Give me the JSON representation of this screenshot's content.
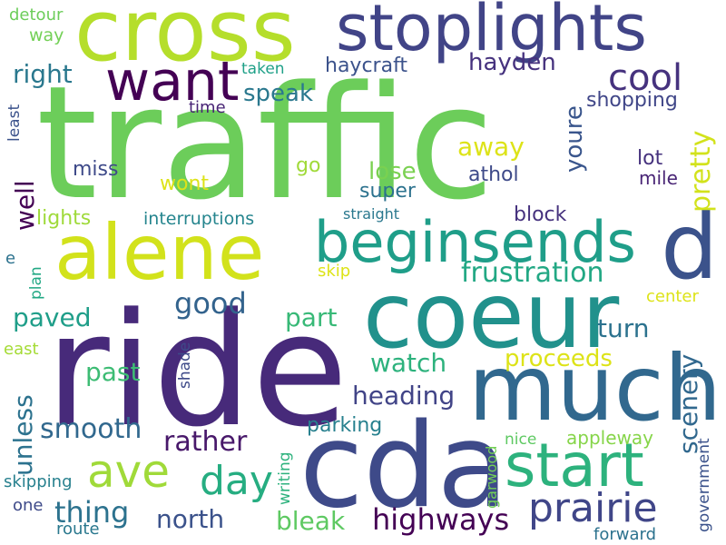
{
  "words": [
    {
      "key": "traffic",
      "text": "traffic",
      "color": "#6ccd5a"
    },
    {
      "key": "ride",
      "text": "ride",
      "color": "#472a7a"
    },
    {
      "key": "cda",
      "text": "cda",
      "color": "#3e4a89"
    },
    {
      "key": "much",
      "text": "much",
      "color": "#31688e"
    },
    {
      "key": "coeur",
      "text": "coeur",
      "color": "#21918c"
    },
    {
      "key": "cross",
      "text": "cross",
      "color": "#b5de2b"
    },
    {
      "key": "alene",
      "text": "alene",
      "color": "#d2e21b"
    },
    {
      "key": "stoplights",
      "text": "stoplights",
      "color": "#414487"
    },
    {
      "key": "beginsends",
      "text": "beginsends",
      "color": "#1f9e89"
    },
    {
      "key": "start",
      "text": "start",
      "color": "#2db27d"
    },
    {
      "key": "d",
      "text": "d",
      "color": "#3b528b"
    },
    {
      "key": "want",
      "text": "want",
      "color": "#440154"
    },
    {
      "key": "ave",
      "text": "ave",
      "color": "#a0da39"
    },
    {
      "key": "prairie",
      "text": "prairie",
      "color": "#404688"
    },
    {
      "key": "day",
      "text": "day",
      "color": "#26ad81"
    },
    {
      "key": "cool",
      "text": "cool",
      "color": "#46327e"
    },
    {
      "key": "frustration",
      "text": "frustration",
      "color": "#22a884"
    },
    {
      "key": "good",
      "text": "good",
      "color": "#33638d"
    },
    {
      "key": "highways",
      "text": "highways",
      "color": "#440154"
    },
    {
      "key": "smooth",
      "text": "smooth",
      "color": "#31688e"
    },
    {
      "key": "rather",
      "text": "rather",
      "color": "#48186a"
    },
    {
      "key": "thing",
      "text": "thing",
      "color": "#2c728e"
    },
    {
      "key": "pretty",
      "text": "pretty",
      "color": "#d2e21b"
    },
    {
      "key": "scenery",
      "text": "scenery",
      "color": "#31688e"
    },
    {
      "key": "paved",
      "text": "paved",
      "color": "#1f9e89"
    },
    {
      "key": "part",
      "text": "part",
      "color": "#38b977"
    },
    {
      "key": "heading",
      "text": "heading",
      "color": "#414487"
    },
    {
      "key": "watch",
      "text": "watch",
      "color": "#2db27d"
    },
    {
      "key": "turn",
      "text": "turn",
      "color": "#2c728e"
    },
    {
      "key": "speak",
      "text": "speak",
      "color": "#2a788e"
    },
    {
      "key": "away",
      "text": "away",
      "color": "#dde318"
    },
    {
      "key": "lose",
      "text": "lose",
      "color": "#7ad151"
    },
    {
      "key": "north",
      "text": "north",
      "color": "#3b528b"
    },
    {
      "key": "bleak",
      "text": "bleak",
      "color": "#5ec962"
    },
    {
      "key": "proceeds",
      "text": "proceeds",
      "color": "#dde318"
    },
    {
      "key": "past",
      "text": "past",
      "color": "#3dbc74"
    },
    {
      "key": "unless",
      "text": "unless",
      "color": "#2c728e"
    },
    {
      "key": "well",
      "text": "well",
      "color": "#440154"
    },
    {
      "key": "youre",
      "text": "youre",
      "color": "#39558c"
    },
    {
      "key": "right",
      "text": "right",
      "color": "#2a788e"
    },
    {
      "key": "hayden",
      "text": "hayden",
      "color": "#46327e"
    },
    {
      "key": "interruptions",
      "text": "interruptions",
      "color": "#25858e"
    },
    {
      "key": "haycraft",
      "text": "haycraft",
      "color": "#3b528b"
    },
    {
      "key": "shopping",
      "text": "shopping",
      "color": "#404688"
    },
    {
      "key": "miss",
      "text": "miss",
      "color": "#3e4a89"
    },
    {
      "key": "super",
      "text": "super",
      "color": "#2c728e"
    },
    {
      "key": "athol",
      "text": "athol",
      "color": "#3e4a89"
    },
    {
      "key": "block",
      "text": "block",
      "color": "#46327e"
    },
    {
      "key": "lot",
      "text": "lot",
      "color": "#46327e"
    },
    {
      "key": "mile",
      "text": "mile",
      "color": "#482475"
    },
    {
      "key": "wont",
      "text": "wont",
      "color": "#dde318"
    },
    {
      "key": "go",
      "text": "go",
      "color": "#a0da39"
    },
    {
      "key": "lights",
      "text": "lights",
      "color": "#9fda3a"
    },
    {
      "key": "parking",
      "text": "parking",
      "color": "#27808e"
    },
    {
      "key": "appleway",
      "text": "appleway",
      "color": "#86d549"
    },
    {
      "key": "government",
      "text": "government",
      "color": "#3b528b"
    },
    {
      "key": "center",
      "text": "center",
      "color": "#dde318"
    },
    {
      "key": "skipping",
      "text": "skipping",
      "color": "#27808e"
    },
    {
      "key": "route",
      "text": "route",
      "color": "#2a788e"
    },
    {
      "key": "forward",
      "text": "forward",
      "color": "#2c728e"
    },
    {
      "key": "time",
      "text": "time",
      "color": "#482475"
    },
    {
      "key": "taken",
      "text": "taken",
      "color": "#1fa088"
    },
    {
      "key": "way",
      "text": "way",
      "color": "#73d056"
    },
    {
      "key": "detour",
      "text": "detour",
      "color": "#6ccd5a"
    },
    {
      "key": "least",
      "text": "least",
      "color": "#3b528b"
    },
    {
      "key": "e",
      "text": "e",
      "color": "#2c728e"
    },
    {
      "key": "plan",
      "text": "plan",
      "color": "#22a884"
    },
    {
      "key": "skip",
      "text": "skip",
      "color": "#dde318"
    },
    {
      "key": "east",
      "text": "east",
      "color": "#a5db36"
    },
    {
      "key": "shade",
      "text": "shade",
      "color": "#3e4a89"
    },
    {
      "key": "writing",
      "text": "writing",
      "color": "#2db27d"
    },
    {
      "key": "garwood",
      "text": "garwood",
      "color": "#73d056"
    },
    {
      "key": "nice",
      "text": "nice",
      "color": "#5ec962"
    },
    {
      "key": "straight",
      "text": "straight",
      "color": "#2a788e"
    },
    {
      "key": "one",
      "text": "one",
      "color": "#3e4a89"
    }
  ]
}
